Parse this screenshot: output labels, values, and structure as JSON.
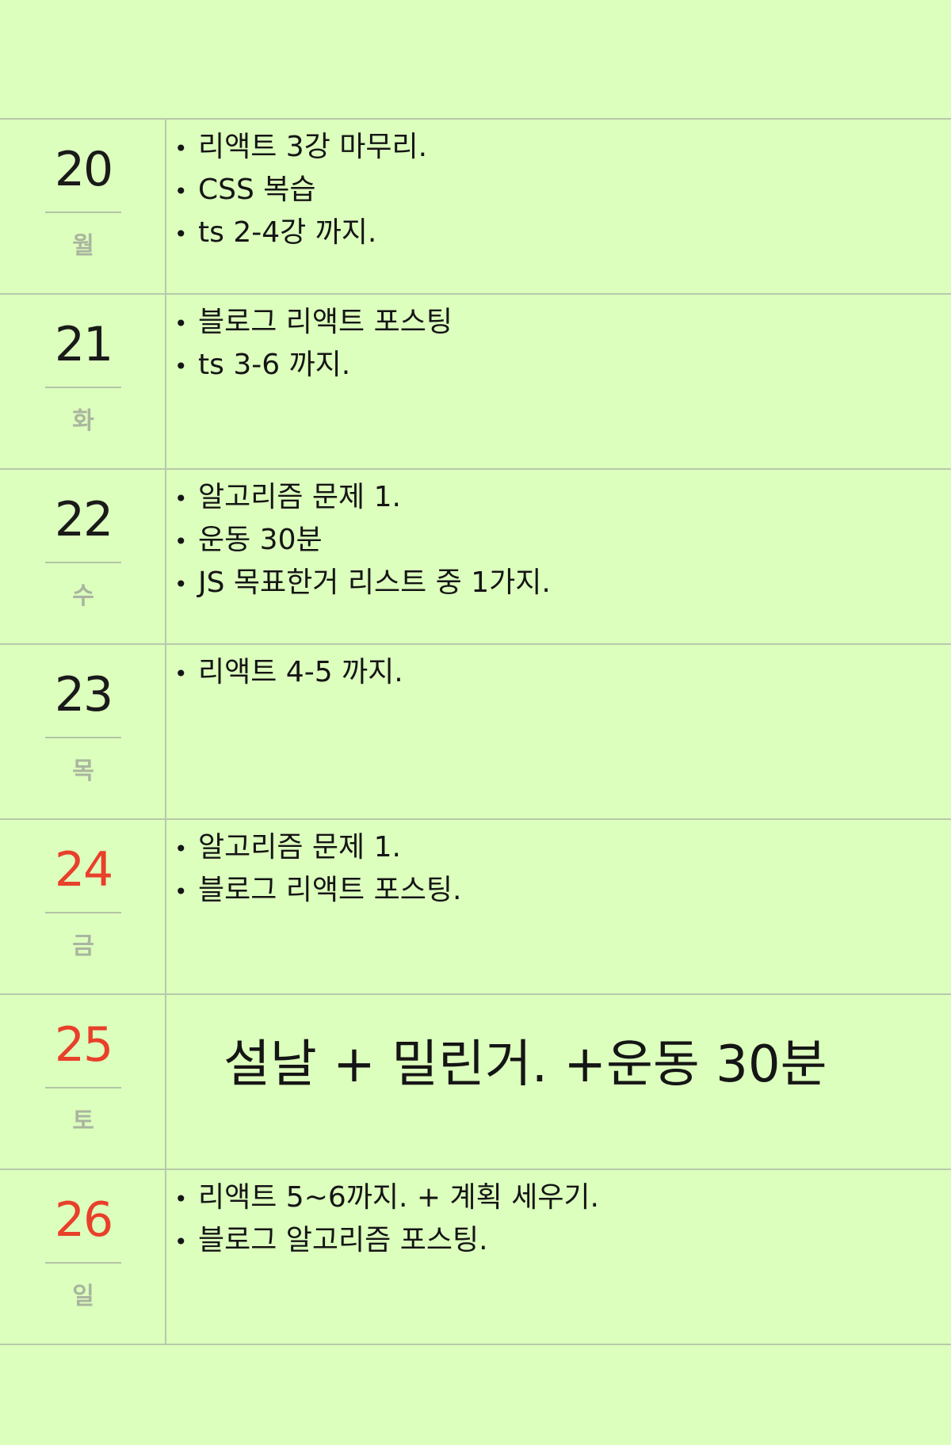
{
  "colors": {
    "paper": "#dcffbd",
    "rule_line": "#b8c9ab",
    "weekday_text": "#a9b59f",
    "weekend_date": "#e8402a",
    "ink": "#151515"
  },
  "days": [
    {
      "date": "20",
      "weekday": "월",
      "weekend": false,
      "tasks": [
        "리액트 3강 마무리.",
        "CSS 복습",
        "ts 2-4강 까지."
      ]
    },
    {
      "date": "21",
      "weekday": "화",
      "weekend": false,
      "tasks": [
        "블로그 리액트 포스팅",
        "ts 3-6 까지."
      ]
    },
    {
      "date": "22",
      "weekday": "수",
      "weekend": false,
      "tasks": [
        "알고리즘 문제 1.",
        "운동 30분",
        "JS 목표한거 리스트 중 1가지."
      ]
    },
    {
      "date": "23",
      "weekday": "목",
      "weekend": false,
      "tasks": [
        "리액트 4-5 까지."
      ]
    },
    {
      "date": "24",
      "weekday": "금",
      "weekend": true,
      "tasks": [
        "알고리즘 문제 1.",
        "블로그 리액트 포스팅."
      ]
    },
    {
      "date": "25",
      "weekday": "토",
      "weekend": true,
      "big_note": "설날 + 밀린거. +운동 30분",
      "tasks": []
    },
    {
      "date": "26",
      "weekday": "일",
      "weekend": true,
      "tasks": [
        "리액트 5~6까지. + 계획 세우기.",
        "블로그 알고리즘 포스팅."
      ]
    }
  ],
  "bullet": "•"
}
